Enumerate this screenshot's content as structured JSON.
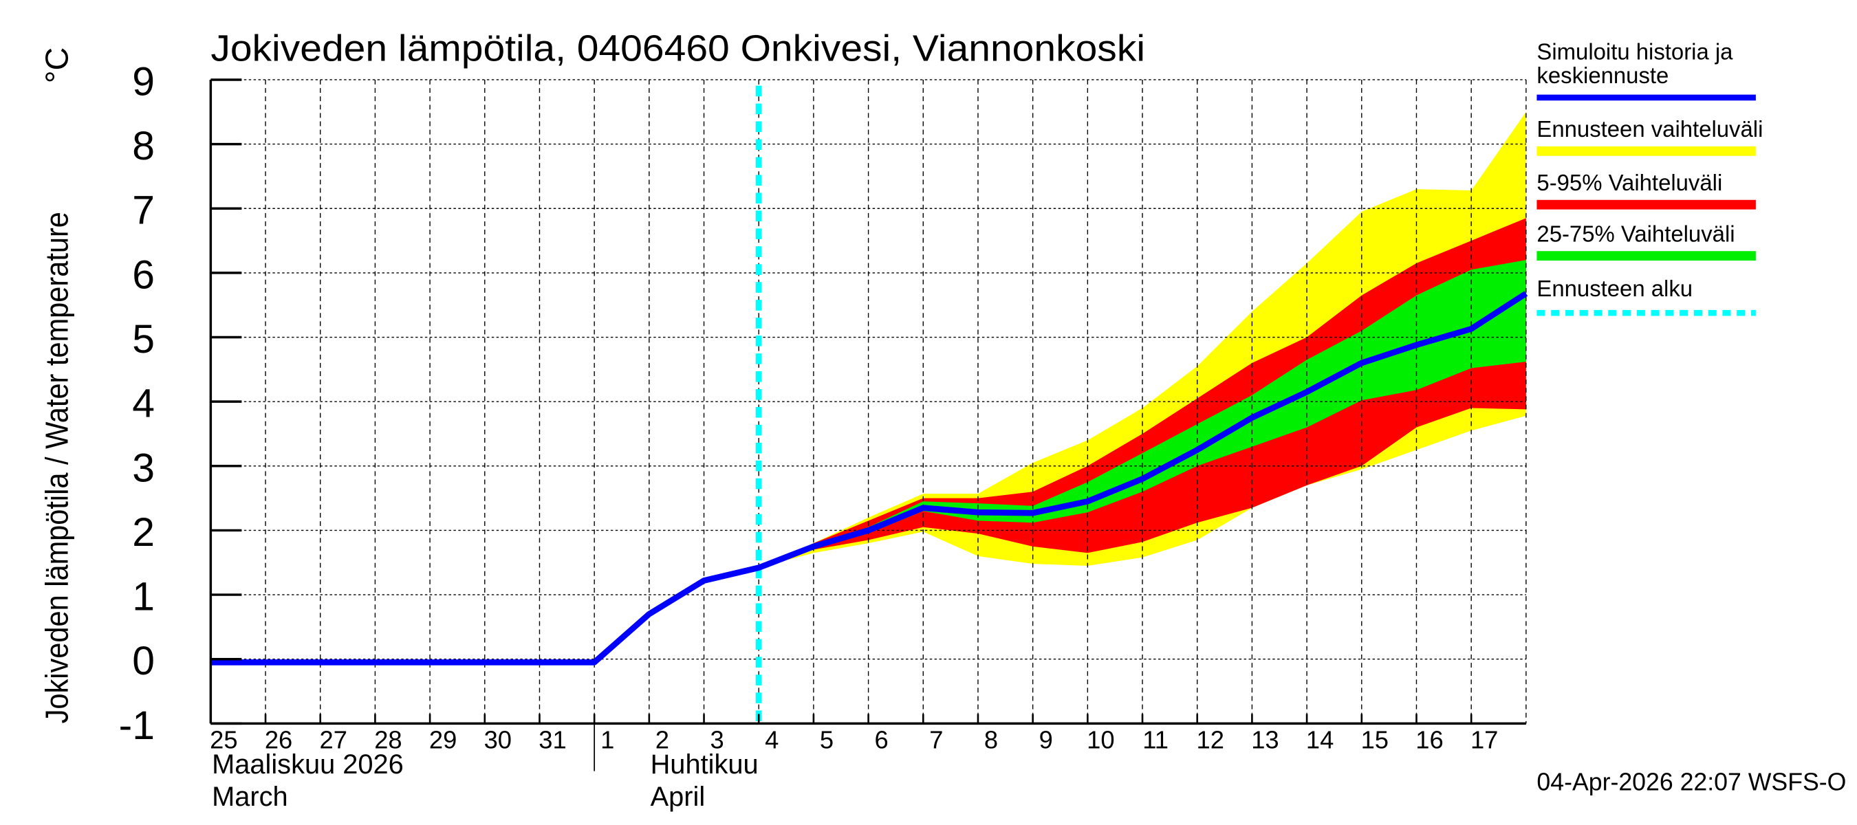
{
  "chart_data": {
    "type": "area",
    "title": "Jokiveden lämpötila, 0406460 Onkivesi, Viannonkoski",
    "ylabel": "Jokiveden lämpötila / Water temperature",
    "yunit": "°C",
    "ylim": [
      -1,
      9
    ],
    "yticks": [
      "-1",
      "0",
      "1",
      "2",
      "3",
      "4",
      "5",
      "6",
      "7",
      "8",
      "9"
    ],
    "xlim": [
      "2026-03-25",
      "2026-04-18"
    ],
    "grid": true,
    "x_tick_labels": [
      "25",
      "26",
      "27",
      "28",
      "29",
      "30",
      "31",
      "1",
      "2",
      "3",
      "4",
      "5",
      "6",
      "7",
      "8",
      "9",
      "10",
      "11",
      "12",
      "13",
      "14",
      "15",
      "16",
      "17"
    ],
    "month_labels": [
      {
        "fi": "Maaliskuu 2026",
        "en": "March",
        "date": "2026-03-25"
      },
      {
        "fi": "Huhtikuu",
        "en": "April",
        "date": "2026-04-02"
      }
    ],
    "forecast_start": "2026-04-04",
    "forecast_dates": [
      "2026-04-04",
      "2026-04-05",
      "2026-04-06",
      "2026-04-07",
      "2026-04-08",
      "2026-04-09",
      "2026-04-10",
      "2026-04-11",
      "2026-04-12",
      "2026-04-13",
      "2026-04-14",
      "2026-04-15",
      "2026-04-16",
      "2026-04-17",
      "2026-04-18"
    ],
    "bands": [
      {
        "name": "Ennusteen vaihteluväli",
        "color": "#ffff00",
        "upper": [
          1.42,
          1.8,
          2.2,
          2.57,
          2.57,
          3.05,
          3.4,
          3.9,
          4.55,
          5.4,
          6.15,
          6.95,
          7.3,
          7.28,
          8.5
        ],
        "lower": [
          1.42,
          1.65,
          1.8,
          1.98,
          1.6,
          1.48,
          1.45,
          1.58,
          1.85,
          2.35,
          2.7,
          2.95,
          3.25,
          3.55,
          3.78
        ]
      },
      {
        "name": "5-95% Vaihteluväli",
        "color": "#ff0000",
        "upper": [
          1.42,
          1.8,
          2.15,
          2.5,
          2.5,
          2.6,
          3.0,
          3.5,
          4.05,
          4.6,
          5.0,
          5.65,
          6.15,
          6.5,
          6.85
        ],
        "lower": [
          1.42,
          1.7,
          1.85,
          2.05,
          1.95,
          1.75,
          1.65,
          1.82,
          2.12,
          2.35,
          2.7,
          3.0,
          3.6,
          3.9,
          3.88
        ]
      },
      {
        "name": "25-75% Vaihteluväli",
        "color": "#00ee00",
        "upper": [
          1.42,
          1.78,
          2.05,
          2.45,
          2.42,
          2.38,
          2.75,
          3.2,
          3.65,
          4.1,
          4.65,
          5.1,
          5.65,
          6.05,
          6.2
        ],
        "lower": [
          1.42,
          1.72,
          1.95,
          2.3,
          2.15,
          2.12,
          2.28,
          2.6,
          3.0,
          3.3,
          3.6,
          4.02,
          4.18,
          4.52,
          4.62
        ]
      }
    ],
    "series": [
      {
        "name": "Simuloitu historia ja keskiennuste",
        "color": "#0000ff",
        "x": [
          "2026-03-25",
          "2026-03-26",
          "2026-03-27",
          "2026-03-28",
          "2026-03-29",
          "2026-03-30",
          "2026-03-31",
          "2026-04-01",
          "2026-04-02",
          "2026-04-03",
          "2026-04-04",
          "2026-04-05",
          "2026-04-06",
          "2026-04-07",
          "2026-04-08",
          "2026-04-09",
          "2026-04-10",
          "2026-04-11",
          "2026-04-12",
          "2026-04-13",
          "2026-04-14",
          "2026-04-15",
          "2026-04-16",
          "2026-04-17",
          "2026-04-18"
        ],
        "y": [
          -0.05,
          -0.05,
          -0.05,
          -0.05,
          -0.05,
          -0.05,
          -0.05,
          -0.05,
          0.7,
          1.22,
          1.42,
          1.75,
          2.0,
          2.35,
          2.28,
          2.27,
          2.45,
          2.8,
          3.25,
          3.75,
          4.15,
          4.6,
          4.88,
          5.13,
          5.68
        ]
      }
    ],
    "legend": {
      "placement": "right",
      "entries": [
        {
          "lines": [
            "Simuloitu historia ja",
            "keskiennuste"
          ],
          "color": "#0000ff",
          "style": "line"
        },
        {
          "lines": [
            "Ennusteen vaihteluväli"
          ],
          "color": "#ffff00",
          "style": "band"
        },
        {
          "lines": [
            "5-95% Vaihteluväli"
          ],
          "color": "#ff0000",
          "style": "band"
        },
        {
          "lines": [
            "25-75% Vaihteluväli"
          ],
          "color": "#00ee00",
          "style": "band"
        },
        {
          "lines": [
            "Ennusteen alku"
          ],
          "color": "#00ffff",
          "style": "dashed"
        }
      ]
    },
    "footer": "04-Apr-2026 22:07 WSFS-O"
  }
}
